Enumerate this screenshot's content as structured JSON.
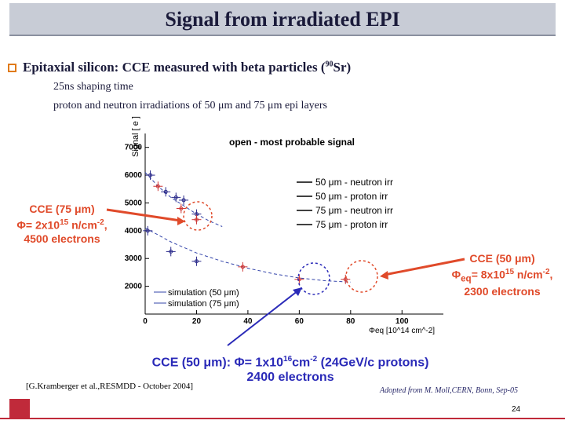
{
  "slide": {
    "title": "Signal from irradiated EPI",
    "bullet": "Epitaxial silicon: CCE measured with beta particles (",
    "bullet_sup": "90",
    "bullet_tail": "Sr)",
    "sub1": "25ns shaping time",
    "sub2": "proton and neutron irradiations of 50 μm and 75 μm epi layers",
    "ref_left": "[G.Kramberger et al.,RESMDD - October 2004]",
    "ref_right": "Adopted from M. Moll,CERN, Bonn, Sep-05",
    "page_number": "24"
  },
  "annotations": {
    "left_l1": "CCE (75 μm)",
    "left_l2": "Φ= 2x10",
    "left_l2_sup": "15",
    "left_l2_tail": " n/cm",
    "left_l2_sup2": "-2",
    "left_l2_end": ",",
    "left_l3": "4500 electrons",
    "right_l1": "CCE (50 μm)",
    "right_l2": "Φ",
    "right_l2_sub": "eq",
    "right_l2_tail": "= 8x10",
    "right_l2_sup": "15",
    "right_l2_tail2": " n/cm",
    "right_l2_sup2": "-2",
    "right_l2_end": ",",
    "right_l3": "2300 electrons",
    "bottom_l1": "CCE (50 μm): Φ= 1x10",
    "bottom_l1_sup": "16",
    "bottom_l1_tail": "cm",
    "bottom_l1_sup2": "-2",
    "bottom_l1_end": " (24GeV/c protons)",
    "bottom_l2": "2400 electrons",
    "red_color": "#e04a2a",
    "blue_color": "#2a2ab8"
  },
  "chart_data": {
    "type": "scatter",
    "title": "open - most probable signal",
    "ylabel": "Signal [ e ]",
    "xlabel": "Φeq [10^14 cm^-2]",
    "xlim": [
      0,
      110
    ],
    "ylim": [
      1000,
      7500
    ],
    "xticks": [
      "0",
      "20",
      "40",
      "60",
      "80",
      "100"
    ],
    "yticks": [
      "2000",
      "3000",
      "4000",
      "5000",
      "6000",
      "7000"
    ],
    "legend": [
      "50 μm - neutron irr",
      "50 μm - proton irr",
      "75 μm - neutron irr",
      "75 μm - proton irr"
    ],
    "legend_sim": [
      "simulation (50  μm)",
      "simulation (75  μm)"
    ],
    "series": [
      {
        "name": "50 μm - neutron irr",
        "x": [
          1,
          10,
          20
        ],
        "y": [
          4000,
          3250,
          2900
        ]
      },
      {
        "name": "50 μm - proton irr",
        "x": [
          38,
          60,
          78
        ],
        "y": [
          2700,
          2250,
          2250
        ]
      },
      {
        "name": "75 μm - neutron irr",
        "x": [
          2,
          8,
          12,
          15,
          20
        ],
        "y": [
          6000,
          5400,
          5200,
          5100,
          4600
        ]
      },
      {
        "name": "75 μm - proton irr",
        "x": [
          5,
          14,
          20
        ],
        "y": [
          5600,
          4800,
          4400
        ]
      }
    ],
    "sim_50": {
      "x": [
        0,
        10,
        20,
        30,
        40,
        50,
        60,
        70,
        80
      ],
      "y": [
        4100,
        3600,
        3200,
        2900,
        2650,
        2450,
        2300,
        2200,
        2150
      ]
    },
    "sim_75": {
      "x": [
        0,
        5,
        10,
        15,
        20,
        25,
        30
      ],
      "y": [
        6100,
        5600,
        5200,
        4900,
        4600,
        4350,
        4150
      ]
    }
  }
}
